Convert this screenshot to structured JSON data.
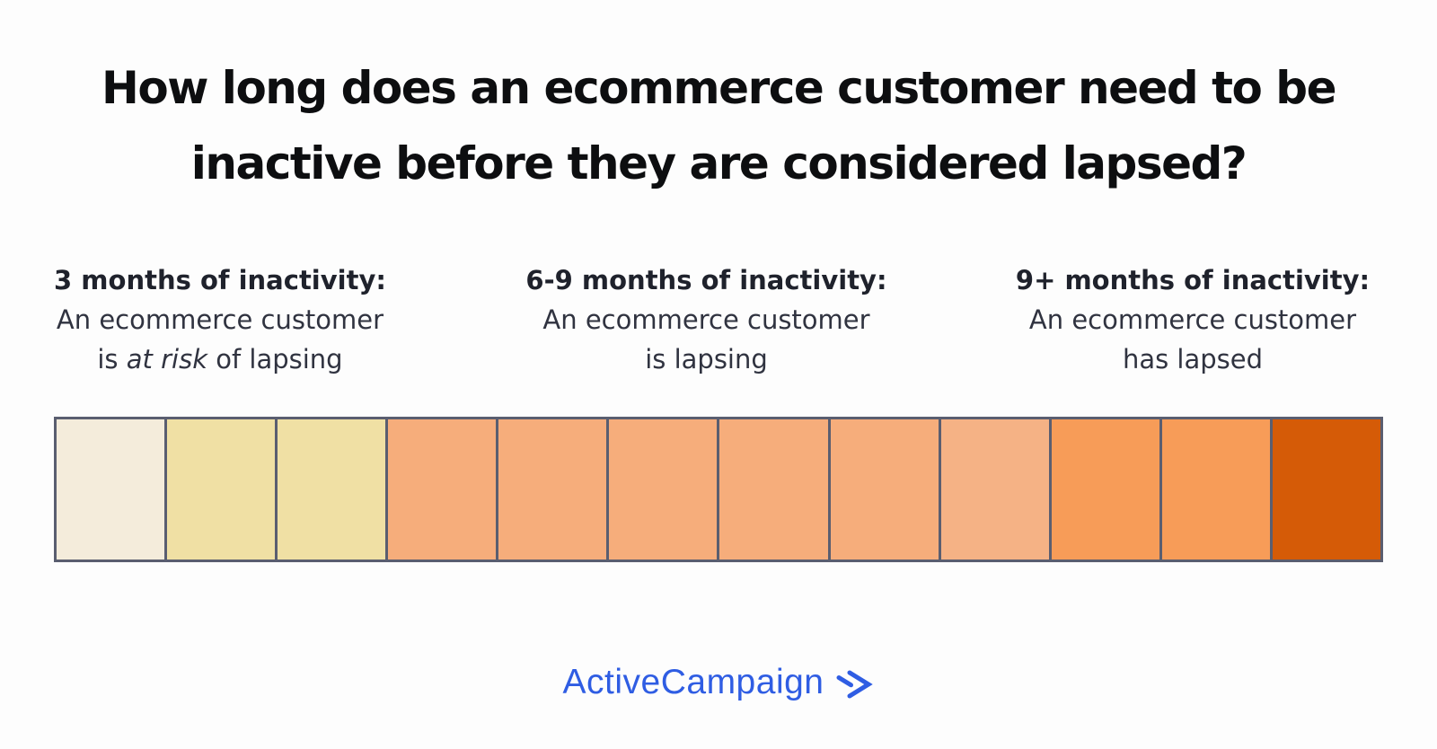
{
  "title": {
    "lines": [
      "How long does an ecommerce customer need to be",
      "inactive before they are considered lapsed?"
    ]
  },
  "stages": [
    {
      "heading": "3 months of inactivity:",
      "line1": "An ecommerce customer",
      "line2_pre": "is ",
      "line2_emphasis": "at risk",
      "line2_post": " of lapsing"
    },
    {
      "heading": "6-9 months of inactivity:",
      "line1": "An ecommerce customer",
      "line2_pre": "is lapsing",
      "line2_emphasis": "",
      "line2_post": ""
    },
    {
      "heading": "9+ months of inactivity:",
      "line1": "An ecommerce customer",
      "line2_pre": "has lapsed",
      "line2_emphasis": "",
      "line2_post": ""
    }
  ],
  "timeline": {
    "border_color": "#5a5e70",
    "segment_count": 12,
    "segments": [
      {
        "index": 1,
        "color": "#f4ecdb"
      },
      {
        "index": 2,
        "color": "#f0e0a4"
      },
      {
        "index": 3,
        "color": "#f0e0a4"
      },
      {
        "index": 4,
        "color": "#f6ad7b"
      },
      {
        "index": 5,
        "color": "#f6ad7b"
      },
      {
        "index": 6,
        "color": "#f6ad7b"
      },
      {
        "index": 7,
        "color": "#f6ad7b"
      },
      {
        "index": 8,
        "color": "#f6ad7b"
      },
      {
        "index": 9,
        "color": "#f5b285"
      },
      {
        "index": 10,
        "color": "#f79c58"
      },
      {
        "index": 11,
        "color": "#f79c58"
      },
      {
        "index": 12,
        "color": "#d55b07"
      }
    ]
  },
  "brand": {
    "name": "ActiveCampaign",
    "logo_color": "#2f5de3",
    "mark": "double-chevron-right"
  }
}
